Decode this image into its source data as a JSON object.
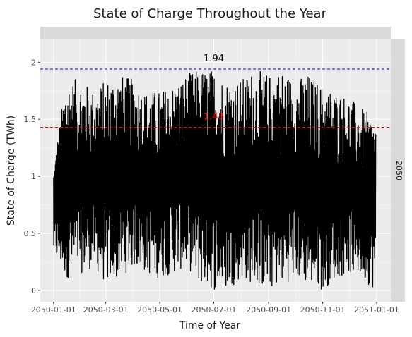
{
  "chart_data": {
    "type": "line",
    "title": "State of Charge Throughout the Year",
    "xlabel": "Time of Year",
    "ylabel": "State of Charge (TWh)",
    "facet_label": "2050",
    "x_ticks": [
      "2050-01-01",
      "2050-03-01",
      "2050-05-01",
      "2050-07-01",
      "2050-09-01",
      "2050-11-01",
      "2051-01-01"
    ],
    "y_ticks": [
      "0",
      "0.5",
      "1",
      "1.5",
      "2"
    ],
    "ylim": [
      -0.1,
      2.2
    ],
    "xlim": [
      "2049-12-17",
      "2051-01-17"
    ],
    "series": [
      {
        "color": "#000000",
        "x": [
          "2050-01-01",
          "2050-01-15",
          "2050-02-01",
          "2050-02-15",
          "2050-03-01",
          "2050-03-15",
          "2050-04-01",
          "2050-04-15",
          "2050-05-01",
          "2050-05-15",
          "2050-06-01",
          "2050-06-15",
          "2050-07-01",
          "2050-07-15",
          "2050-08-01",
          "2050-08-15",
          "2050-09-01",
          "2050-09-15",
          "2050-10-01",
          "2050-10-15",
          "2050-11-01",
          "2050-11-15",
          "2050-12-01",
          "2050-12-15",
          "2050-12-31"
        ],
        "min": [
          0.3,
          0.1,
          0.15,
          0.2,
          0.05,
          0.1,
          0.2,
          0.15,
          0.1,
          0.15,
          0.2,
          0.05,
          0.0,
          0.0,
          0.1,
          0.05,
          0.0,
          0.05,
          0.1,
          0.05,
          0.0,
          0.1,
          0.15,
          0.1,
          0.0
        ],
        "max": [
          1.1,
          1.85,
          1.85,
          1.75,
          1.85,
          1.9,
          1.85,
          1.75,
          1.75,
          1.8,
          1.9,
          1.94,
          1.94,
          1.85,
          1.85,
          1.94,
          1.9,
          1.94,
          1.85,
          1.9,
          1.8,
          1.75,
          1.7,
          1.6,
          1.5
        ]
      }
    ],
    "reference_lines": [
      {
        "value": 1.94,
        "label": "1.94",
        "color": "#0000ff",
        "label_color": "#000000"
      },
      {
        "value": 1.43,
        "label": "1.43",
        "color": "#ff0000",
        "label_color": "#ff0000"
      }
    ],
    "grid": true,
    "legend": "none"
  }
}
